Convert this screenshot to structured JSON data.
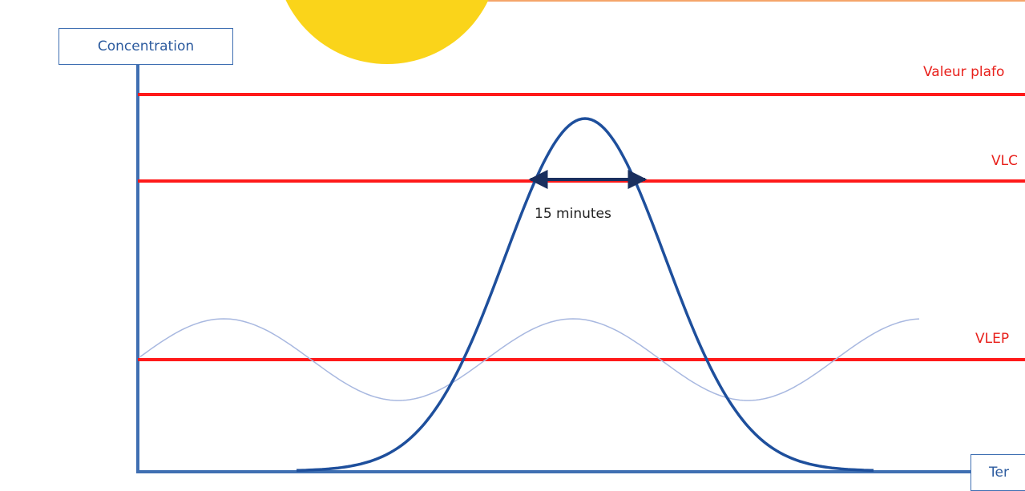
{
  "axes": {
    "y_label": "Concentration",
    "x_label": "Ter"
  },
  "limits": [
    {
      "id": "ceiling",
      "label": "Valeur plafo"
    },
    {
      "id": "vlct",
      "label": "VLC"
    },
    {
      "id": "vlep",
      "label": "VLEP"
    }
  ],
  "peak": {
    "duration_label": "15 minutes"
  },
  "colors": {
    "limit_line": "#ff1a1a",
    "label_text": "#e8201b",
    "axis": "#3f6fb2",
    "peak_curve": "#1e4f9c",
    "baseline_wave": "#a8b8e0",
    "arrow": "#1a2f5e",
    "decor_circle": "#fad41a",
    "top_border": "#f5a56a"
  }
}
